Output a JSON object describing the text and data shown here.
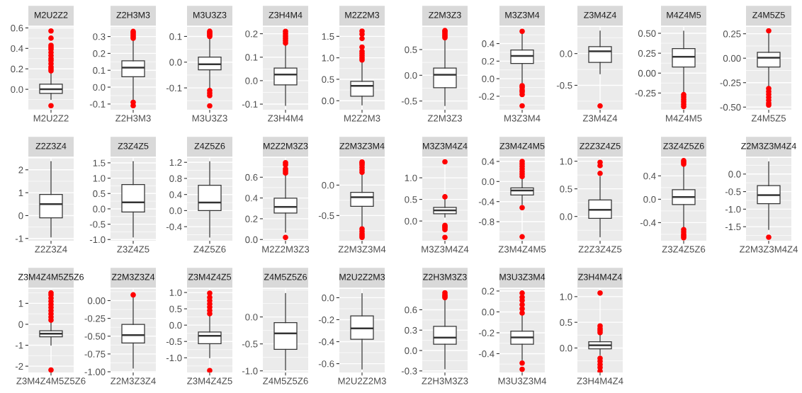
{
  "chart_data": [
    {
      "type": "box",
      "title": "M2U2Z2",
      "categories": [
        "M2U2Z2"
      ],
      "boxes": [
        {
          "low": -0.1,
          "q1": -0.04,
          "median": 0.0,
          "q3": 0.05,
          "high": 0.17,
          "outliers": [
            0.18,
            0.2,
            0.22,
            0.25,
            0.28,
            0.3,
            0.33,
            0.36,
            0.39,
            0.41,
            0.43,
            0.5,
            0.57,
            -0.16
          ]
        }
      ],
      "ylim": [
        -0.2,
        0.61
      ],
      "yticks": [
        {
          "value": 0,
          "label": "0.0"
        },
        0.2,
        0.4,
        0.6
      ],
      "grid": true
    },
    {
      "type": "box",
      "title": "Z2H3M3",
      "categories": [
        "Z2H3M3"
      ],
      "boxes": [
        {
          "low": -0.074,
          "q1": 0.062,
          "median": 0.116,
          "q3": 0.156,
          "high": 0.28,
          "outliers": [
            0.29,
            0.3,
            0.31,
            0.32,
            0.33,
            -0.09,
            -0.11
          ]
        }
      ],
      "ylim": [
        -0.134,
        0.357
      ],
      "yticks": [
        -0.1,
        {
          "value": 0,
          "label": "0.0"
        },
        0.1,
        0.2,
        0.3
      ],
      "grid": true
    },
    {
      "type": "box",
      "title": "M3U3Z3",
      "categories": [
        "M3U3Z3"
      ],
      "boxes": [
        {
          "low": -0.1,
          "q1": -0.03,
          "median": -0.008,
          "q3": 0.02,
          "high": 0.095,
          "outliers": [
            0.1,
            0.105,
            0.11,
            0.115,
            0.12,
            -0.11,
            -0.12,
            -0.13,
            -0.17
          ]
        }
      ],
      "ylim": [
        -0.185,
        0.137
      ],
      "yticks": [
        -0.1,
        {
          "value": 0,
          "label": "0.0"
        },
        0.1
      ],
      "grid": true
    },
    {
      "type": "box",
      "title": "Z3H4M4",
      "categories": [
        "Z3H4M4"
      ],
      "boxes": [
        {
          "low": -0.106,
          "q1": -0.018,
          "median": 0.026,
          "q3": 0.054,
          "high": 0.155,
          "outliers": [
            0.16,
            0.17,
            0.18,
            0.19,
            0.2,
            0.21
          ]
        }
      ],
      "ylim": [
        -0.124,
        0.229
      ],
      "yticks": [
        -0.1,
        {
          "value": 0,
          "label": "0.0"
        },
        0.1,
        0.2
      ],
      "grid": true
    },
    {
      "type": "box",
      "title": "M2Z2M3",
      "categories": [
        "M2Z2M3"
      ],
      "boxes": [
        {
          "low": -0.1,
          "q1": 0.106,
          "median": 0.347,
          "q3": 0.453,
          "high": 0.93,
          "outliers": [
            0.95,
            1.0,
            1.05,
            1.1,
            1.15,
            1.25,
            1.45,
            1.55,
            1.62
          ]
        }
      ],
      "ylim": [
        -0.21,
        1.72
      ],
      "yticks": [
        {
          "value": 0,
          "label": "0.0"
        },
        0.5,
        {
          "value": 1,
          "label": "1.0"
        },
        1.5
      ],
      "grid": true
    },
    {
      "type": "box",
      "title": "Z2M3Z3",
      "categories": [
        "Z2M3Z3"
      ],
      "boxes": [
        {
          "low": -0.59,
          "q1": -0.24,
          "median": 0.01,
          "q3": 0.14,
          "high": 0.72,
          "outliers": [
            0.73,
            0.76,
            0.79,
            0.82,
            0.85,
            0.87
          ]
        }
      ],
      "ylim": [
        -0.67,
        0.94
      ],
      "yticks": [
        -0.5,
        {
          "value": 0,
          "label": "0.0"
        },
        0.5
      ],
      "grid": true
    },
    {
      "type": "box",
      "title": "M3Z3M4",
      "categories": [
        "M3Z3M4"
      ],
      "boxes": [
        {
          "low": -0.05,
          "q1": 0.174,
          "median": 0.26,
          "q3": 0.326,
          "high": 0.52,
          "outliers": [
            0.54,
            -0.08,
            -0.1,
            -0.13,
            -0.15,
            -0.18,
            -0.31
          ]
        }
      ],
      "ylim": [
        -0.354,
        0.59
      ],
      "yticks": [
        -0.2,
        {
          "value": 0,
          "label": "0.0"
        },
        0.2,
        0.4
      ],
      "grid": true
    },
    {
      "type": "box",
      "title": "Z3M4Z4",
      "categories": [
        "Z3M4Z4"
      ],
      "boxes": [
        {
          "low": -0.32,
          "q1": -0.14,
          "median": 0.036,
          "q3": 0.11,
          "high": 0.357,
          "outliers": [
            -0.825
          ]
        }
      ],
      "ylim": [
        -0.885,
        0.42
      ],
      "yticks": [
        -0.5,
        {
          "value": 0,
          "label": "0.0"
        }
      ],
      "grid": true
    },
    {
      "type": "box",
      "title": "M4Z4M5",
      "categories": [
        "M4Z4M5"
      ],
      "boxes": [
        {
          "low": -0.256,
          "q1": 0.076,
          "median": 0.205,
          "q3": 0.307,
          "high": 0.528,
          "outliers": [
            -0.27,
            -0.3,
            -0.33,
            -0.36,
            -0.39,
            -0.42
          ]
        }
      ],
      "ylim": [
        -0.46,
        0.58
      ],
      "yticks": [
        -0.25,
        {
          "value": 0,
          "label": "0.00"
        },
        0.25,
        {
          "value": 0.5,
          "label": "0.50"
        }
      ],
      "grid": true
    },
    {
      "type": "box",
      "title": "Z4M5Z5",
      "categories": [
        "Z4M5Z5"
      ],
      "boxes": [
        {
          "low": -0.3,
          "q1": -0.09,
          "median": 0.005,
          "q3": 0.06,
          "high": 0.25,
          "outliers": [
            0.28,
            -0.31,
            -0.34,
            -0.37,
            -0.4,
            -0.43,
            -0.46,
            -0.48
          ]
        }
      ],
      "ylim": [
        -0.527,
        0.32
      ],
      "yticks": [
        {
          "value": -0.5,
          "label": "-0.50"
        },
        -0.25,
        {
          "value": 0,
          "label": "0.00"
        },
        0.25
      ],
      "grid": true
    },
    {
      "type": "box",
      "title": "Z2Z3Z4",
      "categories": [
        "Z2Z3Z4"
      ],
      "boxes": [
        {
          "low": -0.94,
          "q1": -0.1,
          "median": 0.5,
          "q3": 0.92,
          "high": 2.36
        }
      ],
      "ylim": [
        -1.1,
        2.52
      ],
      "yticks": [
        -1,
        0,
        1,
        2
      ],
      "grid": true
    },
    {
      "type": "box",
      "title": "Z3Z4Z5",
      "categories": [
        "Z3Z4Z5"
      ],
      "boxes": [
        {
          "low": -0.92,
          "q1": -0.1,
          "median": 0.21,
          "q3": 0.79,
          "high": 1.54
        }
      ],
      "ylim": [
        -1.04,
        1.66
      ],
      "yticks": [
        {
          "value": -1,
          "label": "-1.0"
        },
        -0.5,
        {
          "value": 0,
          "label": "0.0"
        },
        0.5,
        {
          "value": 1,
          "label": "1.0"
        },
        1.5
      ],
      "grid": true
    },
    {
      "type": "box",
      "title": "Z4Z5Z6",
      "categories": [
        "Z4Z5Z6"
      ],
      "boxes": [
        {
          "low": -0.66,
          "q1": 0.0,
          "median": 0.2,
          "q3": 0.63,
          "high": 1.22
        }
      ],
      "ylim": [
        -0.75,
        1.31
      ],
      "yticks": [
        -0.4,
        {
          "value": 0,
          "label": "0.0"
        },
        0.4,
        0.8,
        1.2
      ],
      "grid": true
    },
    {
      "type": "box",
      "title": "M2Z2M3Z3",
      "categories": [
        "M2Z2M3Z3"
      ],
      "boxes": [
        {
          "low": 0.07,
          "q1": 0.255,
          "median": 0.314,
          "q3": 0.398,
          "high": 0.62,
          "outliers": [
            0.64,
            0.66,
            0.68,
            0.72,
            0.74,
            0.02
          ]
        }
      ],
      "ylim": [
        -0.012,
        0.786
      ],
      "yticks": [
        {
          "value": 0,
          "label": "0.0"
        },
        0.2,
        0.4,
        0.6
      ],
      "grid": true
    },
    {
      "type": "box",
      "title": "Z2M3Z3M4",
      "categories": [
        "Z2M3Z3M4"
      ],
      "boxes": [
        {
          "low": -0.68,
          "q1": -0.35,
          "median": -0.2,
          "q3": -0.12,
          "high": 0.2,
          "outliers": [
            0.21,
            0.25,
            0.29,
            0.33,
            0.36,
            0.38,
            -0.72,
            -0.76,
            -0.8,
            -0.83,
            -0.86
          ]
        }
      ],
      "ylim": [
        -0.915,
        0.447
      ],
      "yticks": [
        -0.5,
        {
          "value": 0,
          "label": "0.0"
        }
      ],
      "grid": true
    },
    {
      "type": "box",
      "title": "M3Z3M4Z4",
      "categories": [
        "M3Z3M4Z4"
      ],
      "boxes": [
        {
          "low": 0.086,
          "q1": 0.166,
          "median": 0.246,
          "q3": 0.314,
          "high": 0.5,
          "outliers": [
            0.56,
            1.37,
            -0.1,
            -0.13,
            -0.16,
            -0.2,
            -0.38
          ]
        }
      ],
      "ylim": [
        -0.457,
        1.46
      ],
      "yticks": [
        {
          "value": 0,
          "label": "0.0"
        },
        0.5,
        {
          "value": 1,
          "label": "1.0"
        }
      ],
      "grid": true
    },
    {
      "type": "box",
      "title": "Z3M4Z4M5",
      "categories": [
        "Z3M4Z4M5"
      ],
      "boxes": [
        {
          "low": -0.46,
          "q1": -0.267,
          "median": -0.18,
          "q3": -0.128,
          "high": 0.08,
          "outliers": [
            0.1,
            0.15,
            0.2,
            0.25,
            0.3,
            0.35,
            0.4,
            -0.52,
            -1.1
          ]
        }
      ],
      "ylim": [
        -1.18,
        0.47
      ],
      "yticks": [
        -0.8,
        -0.4,
        {
          "value": 0,
          "label": "0.0"
        },
        0.4
      ],
      "grid": true
    },
    {
      "type": "box",
      "title": "Z2Z3Z4Z5",
      "categories": [
        "Z2Z3Z4Z5"
      ],
      "boxes": [
        {
          "low": -0.37,
          "q1": -0.036,
          "median": 0.12,
          "q3": 0.3,
          "high": 0.72,
          "outliers": [
            0.78,
            0.92,
            0.98
          ]
        }
      ],
      "ylim": [
        -0.44,
        1.06
      ],
      "yticks": [
        {
          "value": 0,
          "label": "0.0"
        },
        0.5,
        {
          "value": 1,
          "label": "1.0"
        }
      ],
      "grid": true
    },
    {
      "type": "box",
      "title": "Z3Z4Z5Z6",
      "categories": [
        "Z3Z4Z5Z6"
      ],
      "boxes": [
        {
          "low": -0.5,
          "q1": -0.09,
          "median": 0.038,
          "q3": 0.165,
          "high": 0.58,
          "outliers": [
            0.6,
            0.63,
            0.66,
            -0.52,
            -0.56,
            -0.6,
            -0.63,
            -0.66
          ]
        }
      ],
      "ylim": [
        -0.71,
        0.707
      ],
      "yticks": [
        -0.4,
        {
          "value": 0,
          "label": "0.0"
        },
        0.4
      ],
      "grid": true
    },
    {
      "type": "box",
      "title": "Z2M3Z3M4Z4",
      "categories": [
        "Z2M3Z3M4Z4"
      ],
      "boxes": [
        {
          "low": -1.58,
          "q1": -0.845,
          "median": -0.6,
          "q3": -0.33,
          "high": 0.35,
          "outliers": [
            -1.8
          ]
        }
      ],
      "ylim": [
        -1.9,
        0.46
      ],
      "yticks": [
        -1.5,
        {
          "value": -1,
          "label": "-1.0"
        },
        -0.5,
        {
          "value": 0,
          "label": "0.0"
        }
      ],
      "grid": true
    },
    {
      "type": "box",
      "title": "Z3M4Z4M5Z5Z6",
      "categories": [
        "Z3M4Z4M5Z5Z6"
      ],
      "boxes": [
        {
          "low": -1.0,
          "q1": -0.6,
          "median": -0.45,
          "q3": -0.31,
          "high": 0.14,
          "outliers": [
            0.2,
            0.35,
            0.5,
            0.65,
            0.8,
            0.95,
            1.1,
            1.25,
            1.4,
            1.5,
            -2.18
          ]
        }
      ],
      "ylim": [
        -2.3,
        1.69
      ],
      "yticks": [
        -2,
        -1,
        0,
        1
      ],
      "grid": true
    },
    {
      "type": "box",
      "title": "Z2M3Z3Z4",
      "categories": [
        "Z2M3Z3Z4"
      ],
      "boxes": [
        {
          "low": -0.95,
          "q1": -0.595,
          "median": -0.486,
          "q3": -0.335,
          "high": 0.05,
          "outliers": [
            0.08
          ]
        }
      ],
      "ylim": [
        -1.01,
        0.164
      ],
      "yticks": [
        {
          "value": -1,
          "label": "-1.00"
        },
        -0.75,
        {
          "value": -0.5,
          "label": "-0.50"
        },
        -0.25,
        {
          "value": 0,
          "label": "0.00"
        }
      ],
      "grid": true
    },
    {
      "type": "box",
      "title": "Z3M4Z4Z5",
      "categories": [
        "Z3M4Z4Z5"
      ],
      "boxes": [
        {
          "low": -1.0,
          "q1": -0.57,
          "median": -0.33,
          "q3": -0.21,
          "high": 0.33,
          "outliers": [
            0.35,
            0.45,
            0.55,
            0.65,
            0.75,
            0.85,
            0.98,
            -1.39
          ]
        }
      ],
      "ylim": [
        -1.45,
        1.11
      ],
      "yticks": [
        {
          "value": -1,
          "label": "-1.0"
        },
        -0.5,
        {
          "value": 0,
          "label": "0.0"
        },
        0.5,
        {
          "value": 1,
          "label": "1.0"
        }
      ],
      "grid": true
    },
    {
      "type": "box",
      "title": "Z4M5Z5Z6",
      "categories": [
        "Z4M5Z5Z6"
      ],
      "boxes": [
        {
          "low": -0.986,
          "q1": -0.6,
          "median": -0.305,
          "q3": -0.106,
          "high": 0.435
        }
      ],
      "ylim": [
        -1.03,
        0.52
      ],
      "yticks": [
        {
          "value": -1,
          "label": "-1.0"
        },
        -0.5,
        {
          "value": 0,
          "label": "0.0"
        }
      ],
      "grid": true
    },
    {
      "type": "box",
      "title": "M2U2Z2M3",
      "categories": [
        "M2U2Z2M3"
      ],
      "boxes": [
        {
          "low": -0.65,
          "q1": -0.378,
          "median": -0.279,
          "q3": -0.165,
          "high": 0.038
        }
      ],
      "ylim": [
        -0.68,
        0.08
      ],
      "yticks": [
        -0.6,
        -0.4,
        -0.2,
        {
          "value": 0,
          "label": "0.0"
        }
      ],
      "grid": true
    },
    {
      "type": "box",
      "title": "Z2H3M3Z3",
      "categories": [
        "Z2H3M3Z3"
      ],
      "boxes": [
        {
          "low": -0.27,
          "q1": 0.092,
          "median": 0.19,
          "q3": 0.356,
          "high": 0.76,
          "outliers": [
            0.78,
            0.8,
            0.82,
            0.85
          ]
        }
      ],
      "ylim": [
        -0.323,
        0.907
      ],
      "yticks": [
        -0.3,
        {
          "value": 0,
          "label": "0.0"
        },
        0.3,
        0.6
      ],
      "grid": true
    },
    {
      "type": "box",
      "title": "M3U3Z3M4",
      "categories": [
        "M3U3Z3M4"
      ],
      "boxes": [
        {
          "low": -0.46,
          "q1": -0.31,
          "median": -0.245,
          "q3": -0.185,
          "high": -0.03,
          "outliers": [
            -0.01,
            0.03,
            0.07,
            0.11,
            0.14,
            0.18,
            -0.49,
            -0.55
          ]
        }
      ],
      "ylim": [
        -0.58,
        0.22
      ],
      "yticks": [
        -0.4,
        -0.2,
        {
          "value": 0,
          "label": "0.0"
        },
        0.2
      ],
      "grid": true
    },
    {
      "type": "box",
      "title": "Z3H4M4Z4",
      "categories": [
        "Z3H4M4Z4"
      ],
      "boxes": [
        {
          "low": -0.136,
          "q1": -0.015,
          "median": 0.053,
          "q3": 0.12,
          "high": 0.28,
          "outliers": [
            0.3,
            0.34,
            0.38,
            0.43,
            1.07,
            -0.2,
            -0.26,
            -0.32,
            -0.38,
            -0.45
          ]
        }
      ],
      "ylim": [
        -0.476,
        1.15
      ],
      "yticks": [
        {
          "value": 0,
          "label": "0.0"
        },
        0.5,
        {
          "value": 1,
          "label": "1.0"
        }
      ],
      "grid": true
    }
  ]
}
